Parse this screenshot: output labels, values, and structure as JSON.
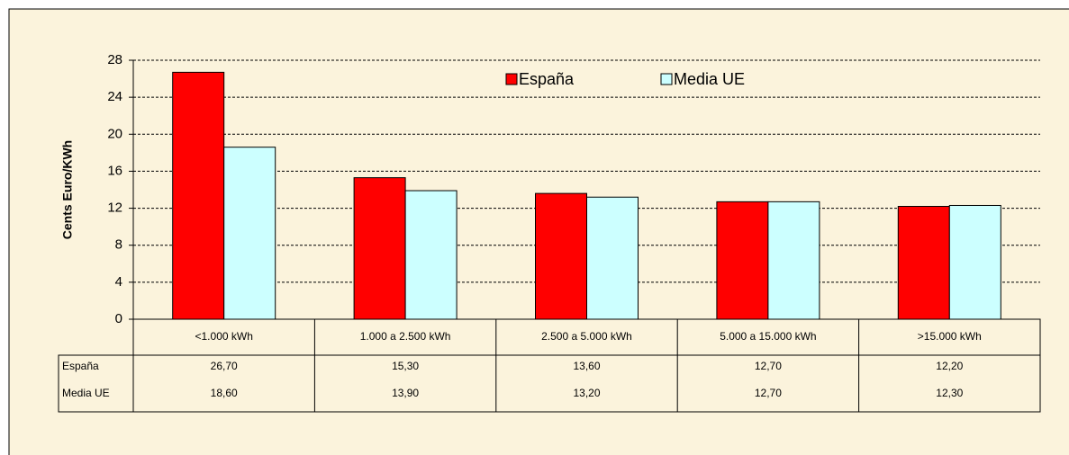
{
  "chart_data": {
    "type": "bar",
    "y_label": "Cents Euro/KWh",
    "categories": [
      "<1.000 kWh",
      "1.000 a 2.500 kWh",
      "2.500 a 5.000 kWh",
      "5.000 a 15.000 kWh",
      ">15.000 kWh"
    ],
    "series": [
      {
        "name": "España",
        "color": "#ff0000",
        "values": [
          26.7,
          15.3,
          13.6,
          12.7,
          12.2
        ],
        "value_labels": [
          "26,70",
          "15,30",
          "13,60",
          "12,70",
          "12,20"
        ]
      },
      {
        "name": "Media UE",
        "color": "#ccffff",
        "values": [
          18.6,
          13.9,
          13.2,
          12.7,
          12.3
        ],
        "value_labels": [
          "18,60",
          "13,90",
          "13,20",
          "12,70",
          "12,30"
        ]
      }
    ],
    "ylim": [
      0,
      28
    ],
    "yticks": [
      0,
      4,
      8,
      12,
      16,
      20,
      24,
      28
    ],
    "grid": true,
    "legend": "top"
  }
}
